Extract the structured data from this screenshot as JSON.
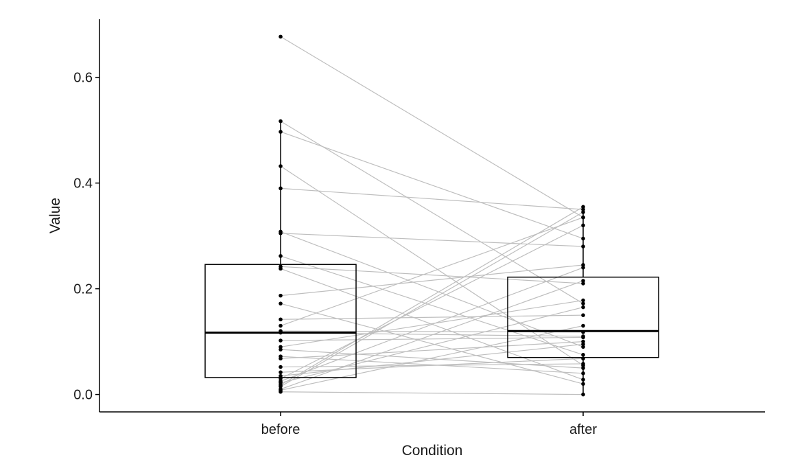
{
  "chart_data": {
    "type": "boxplot",
    "xlabel": "Condition",
    "ylabel": "Value",
    "categories": [
      "before",
      "after"
    ],
    "ylim": [
      -0.033,
      0.71
    ],
    "yticks": [
      0.0,
      0.2,
      0.4,
      0.6
    ],
    "ytick_labels": [
      "0.0",
      "0.2",
      "0.4",
      "0.6"
    ],
    "grid": false,
    "legend": "none",
    "colors": {
      "points": "#000000",
      "pair_lines": "#bebebe",
      "box": "#000000"
    },
    "boxes": [
      {
        "category": "before",
        "q1": 0.032,
        "median": 0.117,
        "q3": 0.246,
        "whisker_low": 0.005,
        "whisker_high": 0.517
      },
      {
        "category": "after",
        "q1": 0.07,
        "median": 0.12,
        "q3": 0.222,
        "whisker_low": 0.0,
        "whisker_high": 0.355
      }
    ],
    "pairs": [
      {
        "before": 0.677,
        "after": 0.335
      },
      {
        "before": 0.517,
        "after": 0.172
      },
      {
        "before": 0.497,
        "after": 0.295
      },
      {
        "before": 0.432,
        "after": 0.055
      },
      {
        "before": 0.39,
        "after": 0.35
      },
      {
        "before": 0.308,
        "after": 0.09
      },
      {
        "before": 0.305,
        "after": 0.28
      },
      {
        "before": 0.262,
        "after": 0.075
      },
      {
        "before": 0.242,
        "after": 0.21
      },
      {
        "before": 0.238,
        "after": 0.028
      },
      {
        "before": 0.187,
        "after": 0.245
      },
      {
        "before": 0.172,
        "after": 0.02
      },
      {
        "before": 0.142,
        "after": 0.15
      },
      {
        "before": 0.13,
        "after": 0.335
      },
      {
        "before": 0.12,
        "after": 0.118
      },
      {
        "before": 0.117,
        "after": 0.11
      },
      {
        "before": 0.102,
        "after": 0.108
      },
      {
        "before": 0.09,
        "after": 0.178
      },
      {
        "before": 0.085,
        "after": 0.05
      },
      {
        "before": 0.072,
        "after": 0.04
      },
      {
        "before": 0.068,
        "after": 0.1
      },
      {
        "before": 0.052,
        "after": 0.058
      },
      {
        "before": 0.042,
        "after": 0.068
      },
      {
        "before": 0.035,
        "after": 0.095
      },
      {
        "before": 0.03,
        "after": 0.32
      },
      {
        "before": 0.025,
        "after": 0.24
      },
      {
        "before": 0.022,
        "after": 0.165
      },
      {
        "before": 0.018,
        "after": 0.355
      },
      {
        "before": 0.015,
        "after": 0.345
      },
      {
        "before": 0.01,
        "after": 0.215
      },
      {
        "before": 0.008,
        "after": 0.13
      },
      {
        "before": 0.005,
        "after": 0.0
      }
    ]
  }
}
